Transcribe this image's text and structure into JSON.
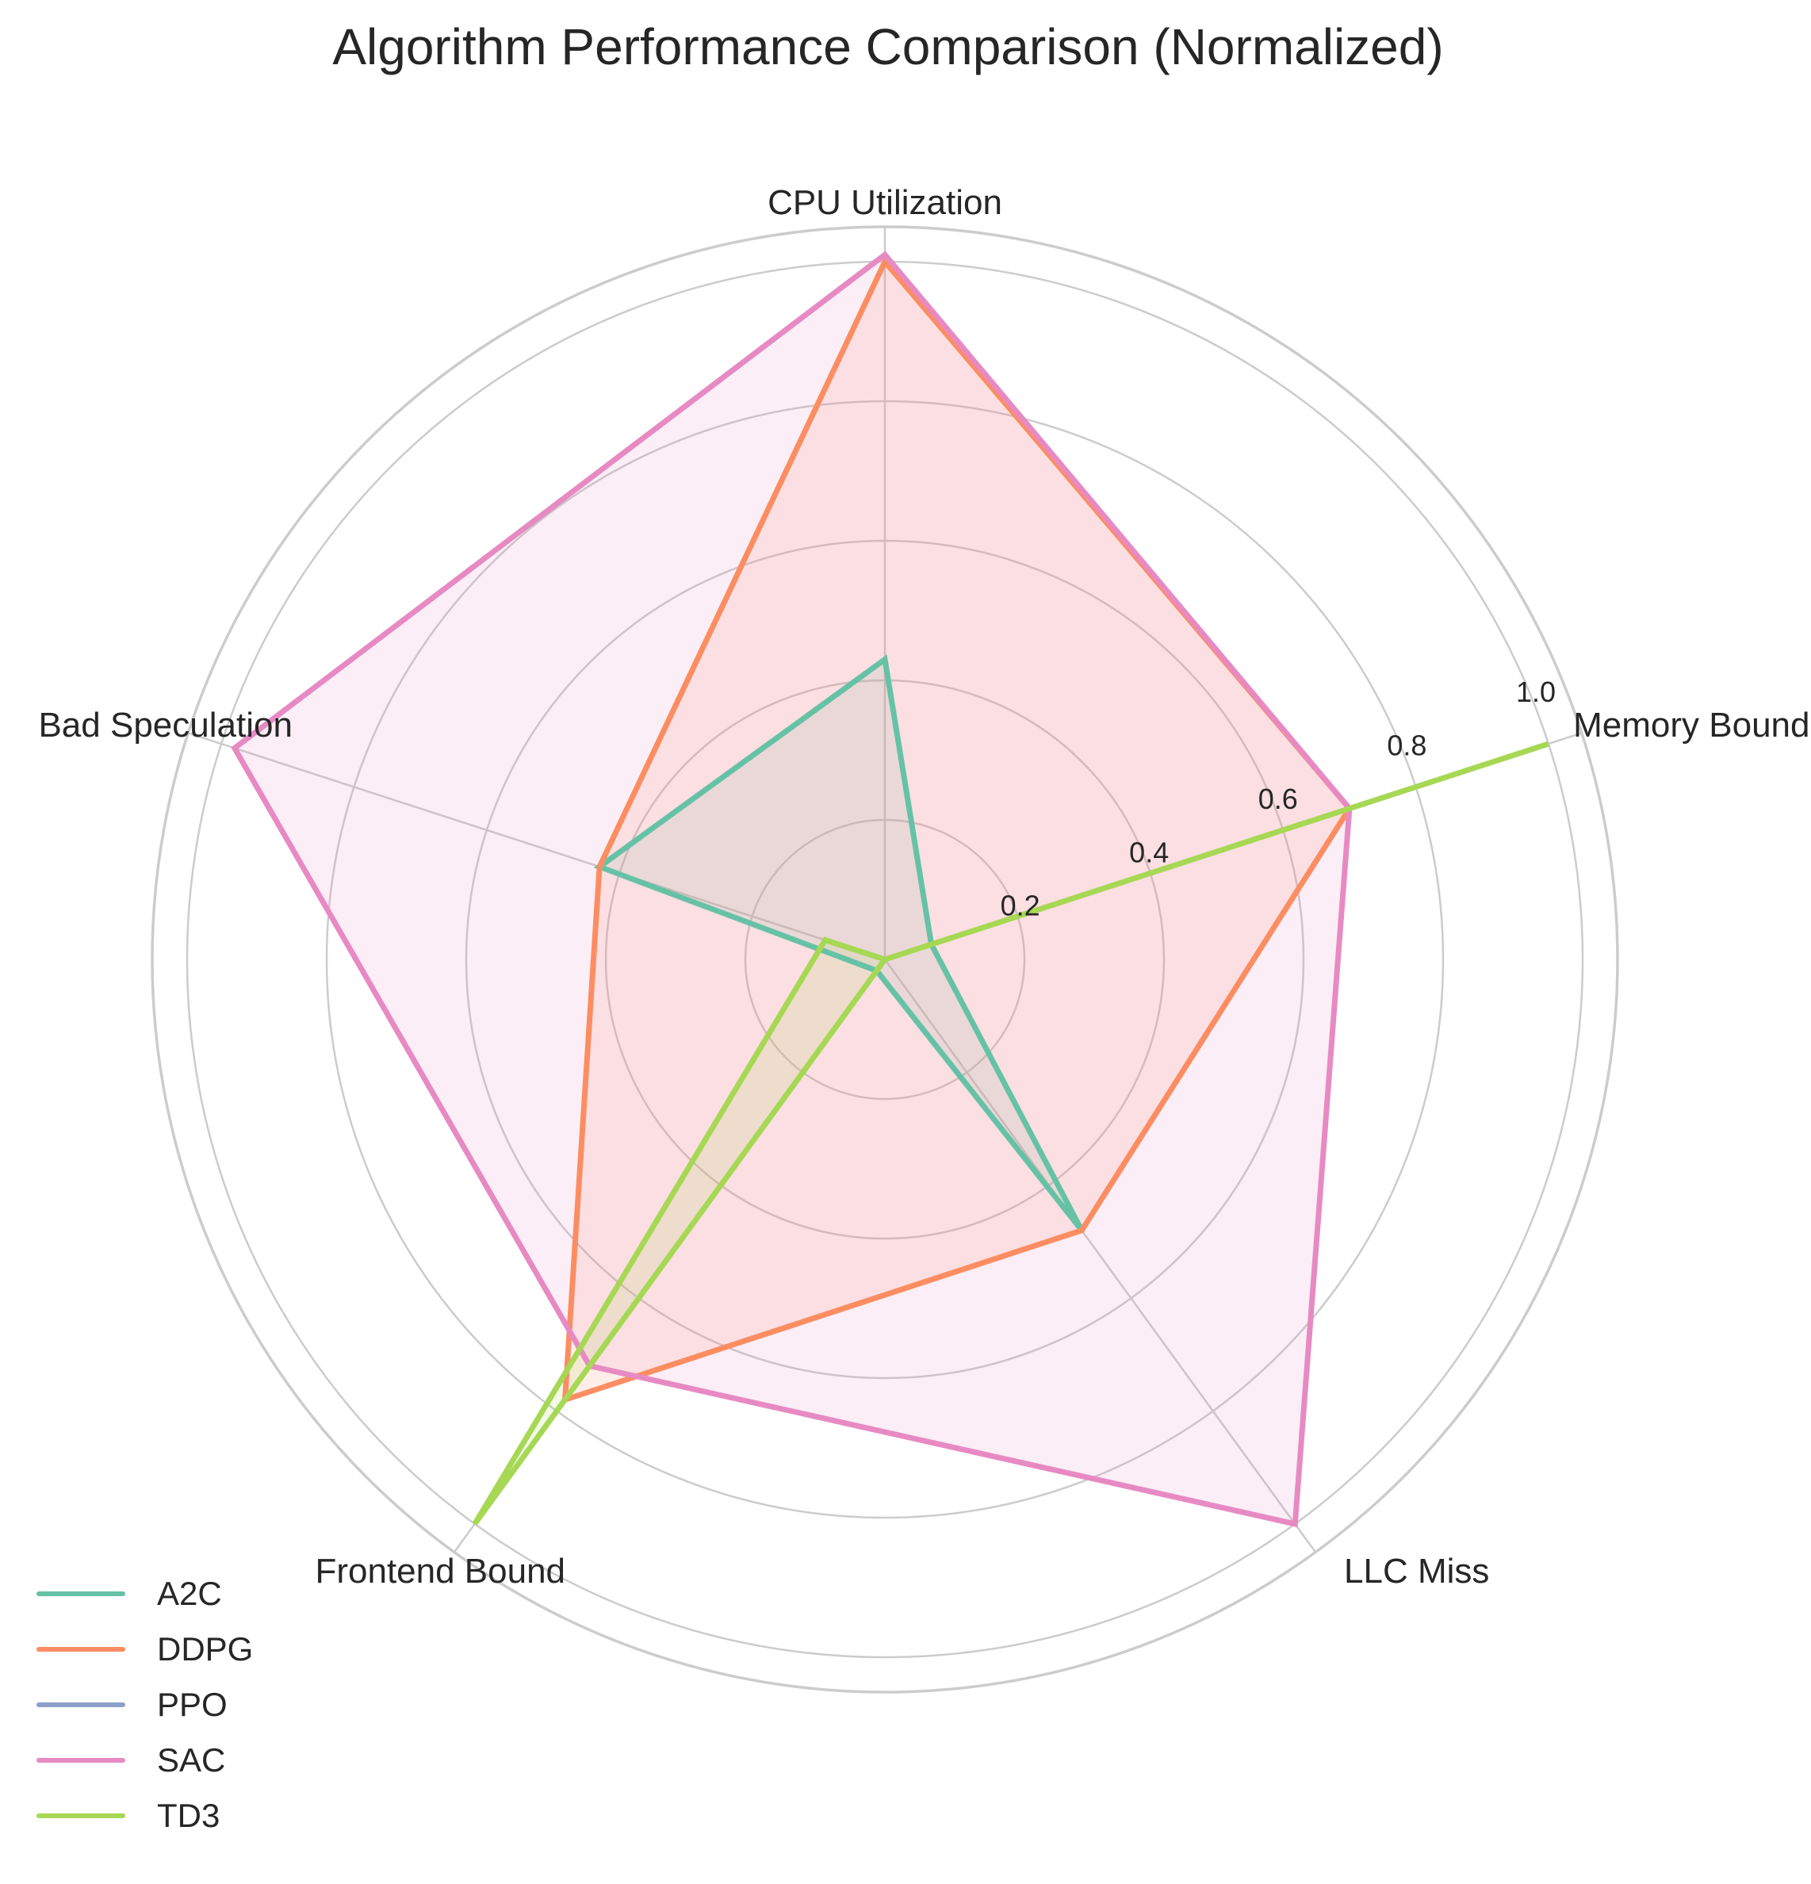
{
  "chart_data": {
    "type": "radar",
    "title": "Algorithm Performance Comparison (Normalized)",
    "axes": [
      "CPU Utilization",
      "Memory Bound",
      "LLC Miss",
      "Frontend Bound",
      "Bad Speculation"
    ],
    "rlim": [
      0,
      1.05
    ],
    "rticks": [
      0.2,
      0.4,
      0.6,
      0.8,
      1.0
    ],
    "rtick_labels": [
      "0.2",
      "0.4",
      "0.6",
      "0.8",
      "1.0"
    ],
    "grid": true,
    "legend_position": "bottom-left",
    "series": [
      {
        "name": "A2C",
        "color": "#66c2a5",
        "values": [
          0.43,
          0.07,
          0.48,
          0.02,
          0.43
        ],
        "fill": true
      },
      {
        "name": "DDPG",
        "color": "#fc8d62",
        "values": [
          1.0,
          0.7,
          0.48,
          0.78,
          0.43
        ],
        "fill": true
      },
      {
        "name": "PPO",
        "color": "#8da0cb",
        "values": [
          0.0,
          0.0,
          0.0,
          0.0,
          0.0
        ],
        "fill": false
      },
      {
        "name": "SAC",
        "color": "#e78ac3",
        "values": [
          1.01,
          0.7,
          1.0,
          0.72,
          0.98
        ],
        "fill": true
      },
      {
        "name": "TD3",
        "color": "#a6d854",
        "values": [
          0.0,
          1.0,
          0.0,
          1.0,
          0.09
        ],
        "fill": true
      }
    ]
  }
}
